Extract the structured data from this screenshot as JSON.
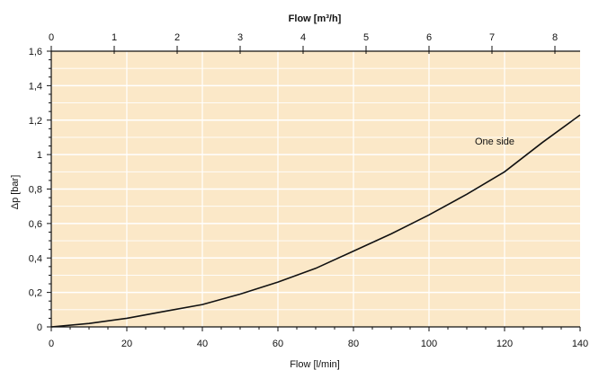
{
  "chart_data": {
    "type": "line",
    "xlabel": "Flow [l/min]",
    "xlabel_top": "Flow [m³/h]",
    "ylabel": "Δp [bar]",
    "xlim": [
      0,
      140
    ],
    "ylim": [
      0,
      1.6
    ],
    "xlim_top": [
      0,
      8.4
    ],
    "x_ticks": [
      "0",
      "20",
      "40",
      "60",
      "80",
      "100",
      "120",
      "140"
    ],
    "x_ticks_top": [
      "0",
      "1",
      "2",
      "3",
      "4",
      "5",
      "6",
      "7",
      "8"
    ],
    "y_ticks": [
      "0",
      "0,2",
      "0,4",
      "0,6",
      "0,8",
      "1",
      "1,2",
      "1,4",
      "1,6"
    ],
    "grid": true,
    "background_color": "#fbe8c8",
    "grid_color": "#ffffff",
    "line_color": "#111111",
    "annotation": "One side",
    "series": [
      {
        "name": "One side",
        "x": [
          0,
          10,
          20,
          30,
          40,
          50,
          60,
          70,
          80,
          90,
          100,
          110,
          120,
          130,
          140
        ],
        "y": [
          0,
          0.02,
          0.05,
          0.09,
          0.13,
          0.19,
          0.26,
          0.34,
          0.44,
          0.54,
          0.65,
          0.77,
          0.9,
          1.07,
          1.23
        ]
      }
    ]
  }
}
